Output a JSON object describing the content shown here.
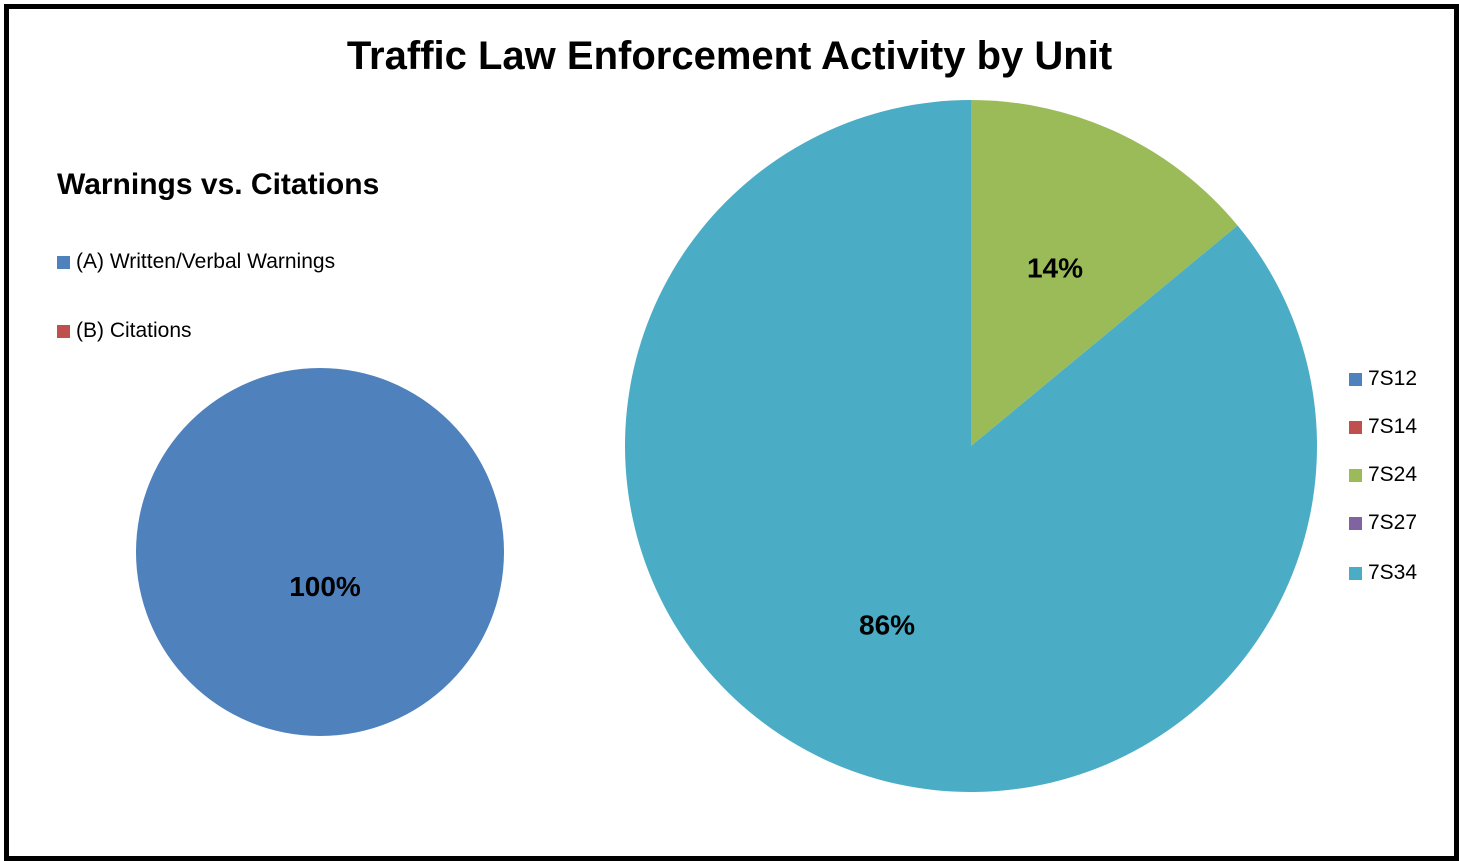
{
  "chart_data": [
    {
      "type": "pie",
      "title": "Warnings vs. Citations",
      "categories": [
        "(A) Written/Verbal Warnings",
        "(B) Citations"
      ],
      "values": [
        100,
        0
      ],
      "data_labels": [
        "100%",
        ""
      ],
      "colors": [
        "#4F81BD",
        "#C0504D"
      ],
      "legend_position": "top-left"
    },
    {
      "type": "pie",
      "title": "Traffic Law Enforcement Activity by Unit",
      "categories": [
        "7S12",
        "7S14",
        "7S24",
        "7S27",
        "7S34"
      ],
      "values": [
        0,
        0,
        14,
        0,
        86
      ],
      "data_labels": [
        "",
        "",
        "14%",
        "",
        "86%"
      ],
      "colors": [
        "#4F81BD",
        "#C0504D",
        "#9BBB59",
        "#8064A2",
        "#4BACC6"
      ],
      "legend_position": "right"
    }
  ]
}
